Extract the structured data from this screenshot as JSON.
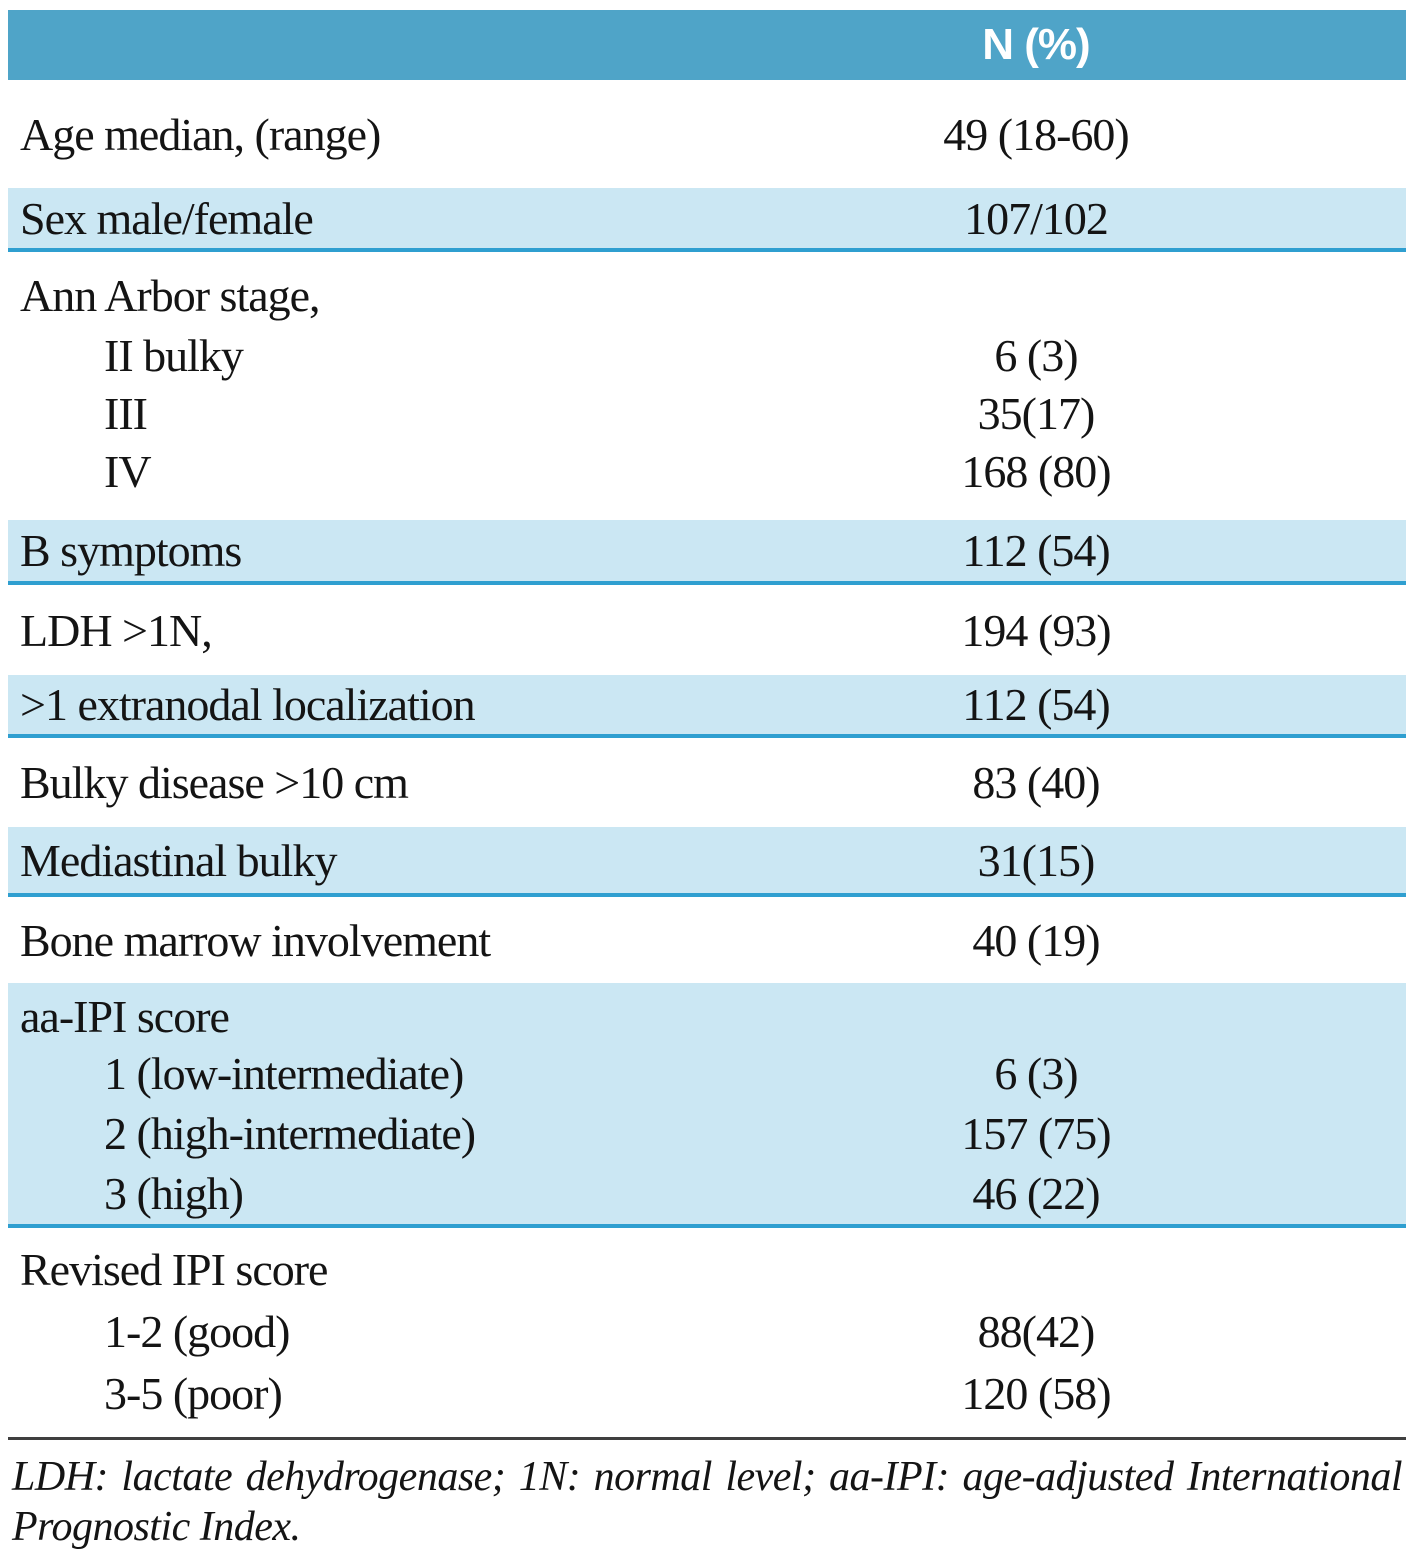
{
  "colors": {
    "header_bg": "#4fa4c8",
    "shaded_bg": "#cbe7f3",
    "band_line": "#2f9fd0",
    "rule": "#3f3f3f",
    "text": "#141414",
    "header_text": "#ffffff"
  },
  "table": {
    "header": {
      "value_column": "N (%)"
    },
    "rows": [
      {
        "label": "Age median, (range)",
        "value": "49 (18-60)",
        "shaded": false
      },
      {
        "label": "Sex male/female",
        "value": "107/102",
        "shaded": true
      },
      {
        "heading": "Ann Arbor stage,",
        "shaded": false,
        "items": [
          {
            "label": "II bulky",
            "value": "6 (3)"
          },
          {
            "label": "III",
            "value": "35(17)"
          },
          {
            "label": "IV",
            "value": "168 (80)"
          }
        ]
      },
      {
        "label": "B symptoms",
        "value": "112 (54)",
        "shaded": true
      },
      {
        "label": "LDH >1N,",
        "value": "194 (93)",
        "shaded": false
      },
      {
        "label": ">1 extranodal localization",
        "value": "112 (54)",
        "shaded": true
      },
      {
        "label": "Bulky disease >10 cm",
        "value": "83 (40)",
        "shaded": false
      },
      {
        "label": "Mediastinal bulky",
        "value": "31(15)",
        "shaded": true
      },
      {
        "label": "Bone marrow involvement",
        "value": "40 (19)",
        "shaded": false
      },
      {
        "heading": "aa-IPI score",
        "shaded": true,
        "items": [
          {
            "label": "1 (low-intermediate)",
            "value": "6 (3)"
          },
          {
            "label": "2 (high-intermediate)",
            "value": "157 (75)"
          },
          {
            "label": "3 (high)",
            "value": "46 (22)"
          }
        ]
      },
      {
        "heading": "Revised IPI score",
        "shaded": false,
        "items": [
          {
            "label": "1-2 (good)",
            "value": "88(42)"
          },
          {
            "label": "3-5 (poor)",
            "value": "120 (58)"
          }
        ]
      }
    ]
  },
  "footnote": {
    "line1": "LDH: lactate dehydrogenase; 1N: normal level; aa-IPI: age-adjusted International",
    "line2": "Prognostic Index.",
    "full_text": "LDH: lactate dehydrogenase; 1N: normal level; aa-IPI: age-adjusted International Prognostic Index."
  }
}
